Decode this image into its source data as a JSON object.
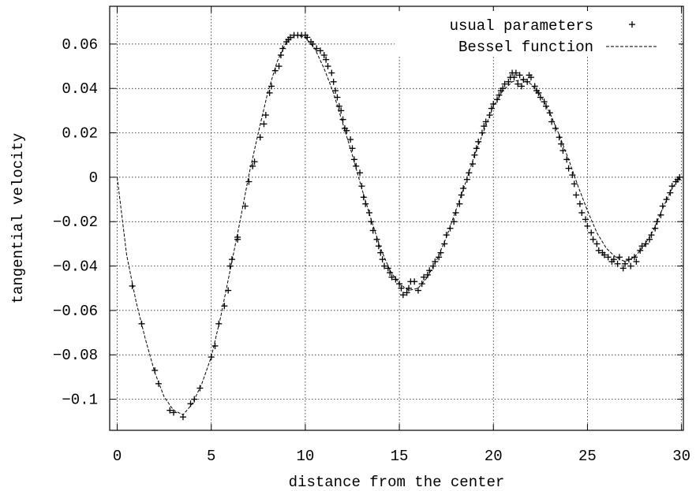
{
  "chart_data": {
    "type": "scatter",
    "xlabel": "distance from the center",
    "ylabel": "tangential velocity",
    "xlim": [
      -0.4,
      30.1
    ],
    "ylim": [
      -0.114,
      0.077
    ],
    "x_ticks": [
      0,
      5,
      10,
      15,
      20,
      25,
      30
    ],
    "x_tick_labels": [
      "0",
      "5",
      "10",
      "15",
      "20",
      "25",
      "30"
    ],
    "y_ticks": [
      0.06,
      0.04,
      0.02,
      0,
      -0.02,
      -0.04,
      -0.06,
      -0.08,
      -0.1
    ],
    "y_tick_labels": [
      "0.06",
      "0.04",
      "0.02",
      "0",
      "−0.02",
      "−0.04",
      "−0.06",
      "−0.08",
      "−0.1"
    ],
    "grid": true,
    "legend_position": "top-right",
    "series": [
      {
        "name": "usual parameters",
        "style": "markers",
        "marker": "+",
        "color": "#000000",
        "points": [
          [
            0.8,
            -0.049
          ],
          [
            1.3,
            -0.066
          ],
          [
            2.0,
            -0.087
          ],
          [
            2.2,
            -0.093
          ],
          [
            2.8,
            -0.105
          ],
          [
            3.0,
            -0.106
          ],
          [
            3.5,
            -0.108
          ],
          [
            3.9,
            -0.102
          ],
          [
            4.1,
            -0.1
          ],
          [
            4.4,
            -0.095
          ],
          [
            5.0,
            -0.081
          ],
          [
            5.2,
            -0.076
          ],
          [
            5.4,
            -0.066
          ],
          [
            5.7,
            -0.058
          ],
          [
            5.9,
            -0.051
          ],
          [
            6.0,
            -0.04
          ],
          [
            6.1,
            -0.037
          ],
          [
            6.4,
            -0.028
          ],
          [
            6.4,
            -0.027
          ],
          [
            6.8,
            -0.013
          ],
          [
            7.0,
            -0.002
          ],
          [
            7.2,
            0.005
          ],
          [
            7.3,
            0.007
          ],
          [
            7.6,
            0.018
          ],
          [
            7.8,
            0.024
          ],
          [
            7.9,
            0.028
          ],
          [
            8.1,
            0.038
          ],
          [
            8.2,
            0.041
          ],
          [
            8.4,
            0.048
          ],
          [
            8.6,
            0.05
          ],
          [
            8.7,
            0.055
          ],
          [
            8.8,
            0.058
          ],
          [
            9.0,
            0.061
          ],
          [
            9.1,
            0.062
          ],
          [
            9.2,
            0.063
          ],
          [
            9.4,
            0.064
          ],
          [
            9.6,
            0.064
          ],
          [
            9.8,
            0.064
          ],
          [
            10.0,
            0.064
          ],
          [
            10.1,
            0.063
          ],
          [
            10.3,
            0.061
          ],
          [
            10.4,
            0.06
          ],
          [
            10.6,
            0.058
          ],
          [
            10.8,
            0.057
          ],
          [
            11.0,
            0.055
          ],
          [
            11.1,
            0.053
          ],
          [
            11.2,
            0.05
          ],
          [
            11.4,
            0.047
          ],
          [
            11.5,
            0.043
          ],
          [
            11.6,
            0.039
          ],
          [
            11.7,
            0.036
          ],
          [
            11.8,
            0.032
          ],
          [
            11.9,
            0.03
          ],
          [
            12.0,
            0.026
          ],
          [
            12.1,
            0.022
          ],
          [
            12.2,
            0.021
          ],
          [
            12.4,
            0.017
          ],
          [
            12.5,
            0.013
          ],
          [
            12.6,
            0.008
          ],
          [
            12.7,
            0.005
          ],
          [
            12.9,
            0.002
          ],
          [
            13.0,
            -0.004
          ],
          [
            13.1,
            -0.009
          ],
          [
            13.2,
            -0.012
          ],
          [
            13.4,
            -0.016
          ],
          [
            13.5,
            -0.02
          ],
          [
            13.6,
            -0.024
          ],
          [
            13.8,
            -0.028
          ],
          [
            13.9,
            -0.031
          ],
          [
            14.0,
            -0.034
          ],
          [
            14.1,
            -0.037
          ],
          [
            14.2,
            -0.04
          ],
          [
            14.4,
            -0.041
          ],
          [
            14.5,
            -0.043
          ],
          [
            14.6,
            -0.045
          ],
          [
            14.8,
            -0.046
          ],
          [
            15.0,
            -0.048
          ],
          [
            15.1,
            -0.05
          ],
          [
            15.2,
            -0.053
          ],
          [
            15.4,
            -0.052
          ],
          [
            15.5,
            -0.05
          ],
          [
            15.6,
            -0.047
          ],
          [
            15.8,
            -0.047
          ],
          [
            16.0,
            -0.051
          ],
          [
            16.2,
            -0.048
          ],
          [
            16.3,
            -0.045
          ],
          [
            16.5,
            -0.044
          ],
          [
            16.6,
            -0.042
          ],
          [
            16.8,
            -0.04
          ],
          [
            16.9,
            -0.038
          ],
          [
            17.1,
            -0.036
          ],
          [
            17.2,
            -0.034
          ],
          [
            17.4,
            -0.03
          ],
          [
            17.5,
            -0.026
          ],
          [
            17.7,
            -0.023
          ],
          [
            17.9,
            -0.02
          ],
          [
            18.0,
            -0.016
          ],
          [
            18.2,
            -0.012
          ],
          [
            18.3,
            -0.008
          ],
          [
            18.4,
            -0.005
          ],
          [
            18.6,
            -0.001
          ],
          [
            18.7,
            0.002
          ],
          [
            18.9,
            0.006
          ],
          [
            19.0,
            0.01
          ],
          [
            19.1,
            0.013
          ],
          [
            19.2,
            0.016
          ],
          [
            19.4,
            0.02
          ],
          [
            19.5,
            0.023
          ],
          [
            19.6,
            0.025
          ],
          [
            19.8,
            0.028
          ],
          [
            19.9,
            0.031
          ],
          [
            20.0,
            0.033
          ],
          [
            20.2,
            0.035
          ],
          [
            20.3,
            0.037
          ],
          [
            20.4,
            0.039
          ],
          [
            20.5,
            0.04
          ],
          [
            20.6,
            0.042
          ],
          [
            20.8,
            0.043
          ],
          [
            20.9,
            0.045
          ],
          [
            21.0,
            0.047
          ],
          [
            21.1,
            0.045
          ],
          [
            21.2,
            0.047
          ],
          [
            21.3,
            0.042
          ],
          [
            21.4,
            0.046
          ],
          [
            21.5,
            0.041
          ],
          [
            21.6,
            0.044
          ],
          [
            21.8,
            0.043
          ],
          [
            21.9,
            0.046
          ],
          [
            22.0,
            0.045
          ],
          [
            22.2,
            0.041
          ],
          [
            22.3,
            0.039
          ],
          [
            22.4,
            0.038
          ],
          [
            22.5,
            0.036
          ],
          [
            22.7,
            0.034
          ],
          [
            22.8,
            0.032
          ],
          [
            23.0,
            0.029
          ],
          [
            23.1,
            0.025
          ],
          [
            23.3,
            0.022
          ],
          [
            23.5,
            0.018
          ],
          [
            23.6,
            0.015
          ],
          [
            23.7,
            0.012
          ],
          [
            23.9,
            0.008
          ],
          [
            24.0,
            0.004
          ],
          [
            24.2,
            0.001
          ],
          [
            24.3,
            -0.003
          ],
          [
            24.4,
            -0.008
          ],
          [
            24.6,
            -0.012
          ],
          [
            24.7,
            -0.016
          ],
          [
            24.9,
            -0.019
          ],
          [
            25.0,
            -0.022
          ],
          [
            25.2,
            -0.025
          ],
          [
            25.3,
            -0.028
          ],
          [
            25.5,
            -0.03
          ],
          [
            25.6,
            -0.033
          ],
          [
            25.8,
            -0.034
          ],
          [
            25.9,
            -0.035
          ],
          [
            26.1,
            -0.036
          ],
          [
            26.3,
            -0.038
          ],
          [
            26.4,
            -0.037
          ],
          [
            26.6,
            -0.039
          ],
          [
            26.7,
            -0.036
          ],
          [
            26.9,
            -0.041
          ],
          [
            27.0,
            -0.039
          ],
          [
            27.2,
            -0.037
          ],
          [
            27.3,
            -0.04
          ],
          [
            27.5,
            -0.036
          ],
          [
            27.6,
            -0.038
          ],
          [
            27.8,
            -0.033
          ],
          [
            27.9,
            -0.031
          ],
          [
            28.1,
            -0.03
          ],
          [
            28.3,
            -0.028
          ],
          [
            28.4,
            -0.026
          ],
          [
            28.6,
            -0.023
          ],
          [
            28.7,
            -0.02
          ],
          [
            28.9,
            -0.017
          ],
          [
            29.0,
            -0.013
          ],
          [
            29.2,
            -0.01
          ],
          [
            29.4,
            -0.007
          ],
          [
            29.5,
            -0.004
          ],
          [
            29.7,
            -0.002
          ],
          [
            29.8,
            -0.001
          ],
          [
            29.9,
            0.0
          ]
        ]
      },
      {
        "name": "Bessel function",
        "style": "dashed-line",
        "color": "#000000",
        "points": [
          [
            0.0,
            0.0
          ],
          [
            0.5,
            -0.035
          ],
          [
            1.0,
            -0.056
          ],
          [
            1.5,
            -0.073
          ],
          [
            2.0,
            -0.088
          ],
          [
            2.5,
            -0.099
          ],
          [
            3.0,
            -0.105
          ],
          [
            3.5,
            -0.107
          ],
          [
            4.0,
            -0.102
          ],
          [
            4.5,
            -0.093
          ],
          [
            5.0,
            -0.081
          ],
          [
            5.5,
            -0.063
          ],
          [
            6.0,
            -0.042
          ],
          [
            6.5,
            -0.021
          ],
          [
            7.0,
            0.001
          ],
          [
            7.5,
            0.02
          ],
          [
            8.0,
            0.038
          ],
          [
            8.5,
            0.052
          ],
          [
            9.0,
            0.061
          ],
          [
            9.5,
            0.064
          ],
          [
            10.0,
            0.063
          ],
          [
            10.5,
            0.058
          ],
          [
            11.0,
            0.049
          ],
          [
            11.5,
            0.038
          ],
          [
            12.0,
            0.024
          ],
          [
            12.5,
            0.01
          ],
          [
            13.0,
            -0.005
          ],
          [
            13.5,
            -0.019
          ],
          [
            14.0,
            -0.032
          ],
          [
            14.5,
            -0.042
          ],
          [
            15.0,
            -0.048
          ],
          [
            15.5,
            -0.051
          ],
          [
            16.0,
            -0.05
          ],
          [
            16.5,
            -0.045
          ],
          [
            17.0,
            -0.037
          ],
          [
            17.5,
            -0.027
          ],
          [
            18.0,
            -0.015
          ],
          [
            18.5,
            -0.003
          ],
          [
            19.0,
            0.01
          ],
          [
            19.5,
            0.021
          ],
          [
            20.0,
            0.032
          ],
          [
            20.5,
            0.039
          ],
          [
            21.0,
            0.043
          ],
          [
            21.5,
            0.044
          ],
          [
            22.0,
            0.042
          ],
          [
            22.5,
            0.037
          ],
          [
            23.0,
            0.029
          ],
          [
            23.5,
            0.019
          ],
          [
            24.0,
            0.008
          ],
          [
            24.5,
            -0.004
          ],
          [
            25.0,
            -0.015
          ],
          [
            25.5,
            -0.025
          ],
          [
            26.0,
            -0.032
          ],
          [
            26.5,
            -0.036
          ],
          [
            27.0,
            -0.038
          ],
          [
            27.5,
            -0.036
          ],
          [
            28.0,
            -0.031
          ],
          [
            28.5,
            -0.024
          ],
          [
            29.0,
            -0.014
          ],
          [
            29.5,
            -0.005
          ],
          [
            29.9,
            0.0
          ]
        ]
      }
    ]
  }
}
